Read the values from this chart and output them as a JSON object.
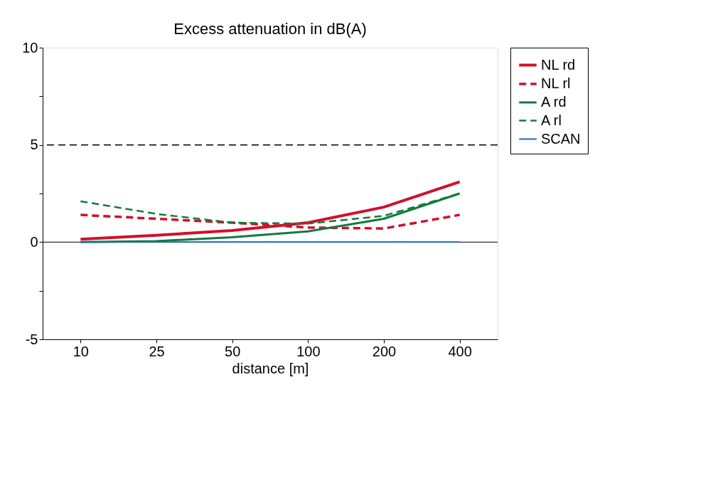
{
  "chart_data": {
    "type": "line",
    "title": "Excess attenuation in dB(A)",
    "xlabel": "distance [m]",
    "categories": [
      "10",
      "25",
      "50",
      "100",
      "200",
      "400"
    ],
    "series": [
      {
        "name": "NL rd",
        "color": "#d0102a",
        "line_style": "solid",
        "values": [
          0.15,
          0.35,
          0.6,
          1.0,
          1.8,
          3.1
        ]
      },
      {
        "name": "NL rl",
        "color": "#d0102a",
        "line_style": "dashed",
        "values": [
          1.4,
          1.2,
          1.0,
          0.75,
          0.7,
          1.4
        ]
      },
      {
        "name": "A rd",
        "color": "#137a3c",
        "line_style": "solid",
        "values": [
          0.0,
          0.05,
          0.25,
          0.55,
          1.2,
          2.5
        ]
      },
      {
        "name": "A rl",
        "color": "#137a3c",
        "line_style": "dashed",
        "values": [
          2.1,
          1.45,
          1.0,
          0.95,
          1.35,
          2.5
        ]
      },
      {
        "name": "SCAN",
        "color": "#1f6bb5",
        "line_style": "solid",
        "values": [
          0,
          0,
          0,
          0,
          0,
          0
        ]
      }
    ],
    "ylim": [
      -5,
      10
    ],
    "yticks": [
      -5,
      {
        "value": -2.5,
        "label": null
      },
      0,
      {
        "value": 2.5,
        "label": null
      },
      5,
      {
        "value": 7.5,
        "label": null
      },
      10
    ],
    "ref_lines": [
      {
        "axis": "y",
        "value": 5,
        "color": "#000000",
        "line_style": "dashed"
      }
    ],
    "grid": false,
    "legend": "right",
    "marker": "none"
  }
}
